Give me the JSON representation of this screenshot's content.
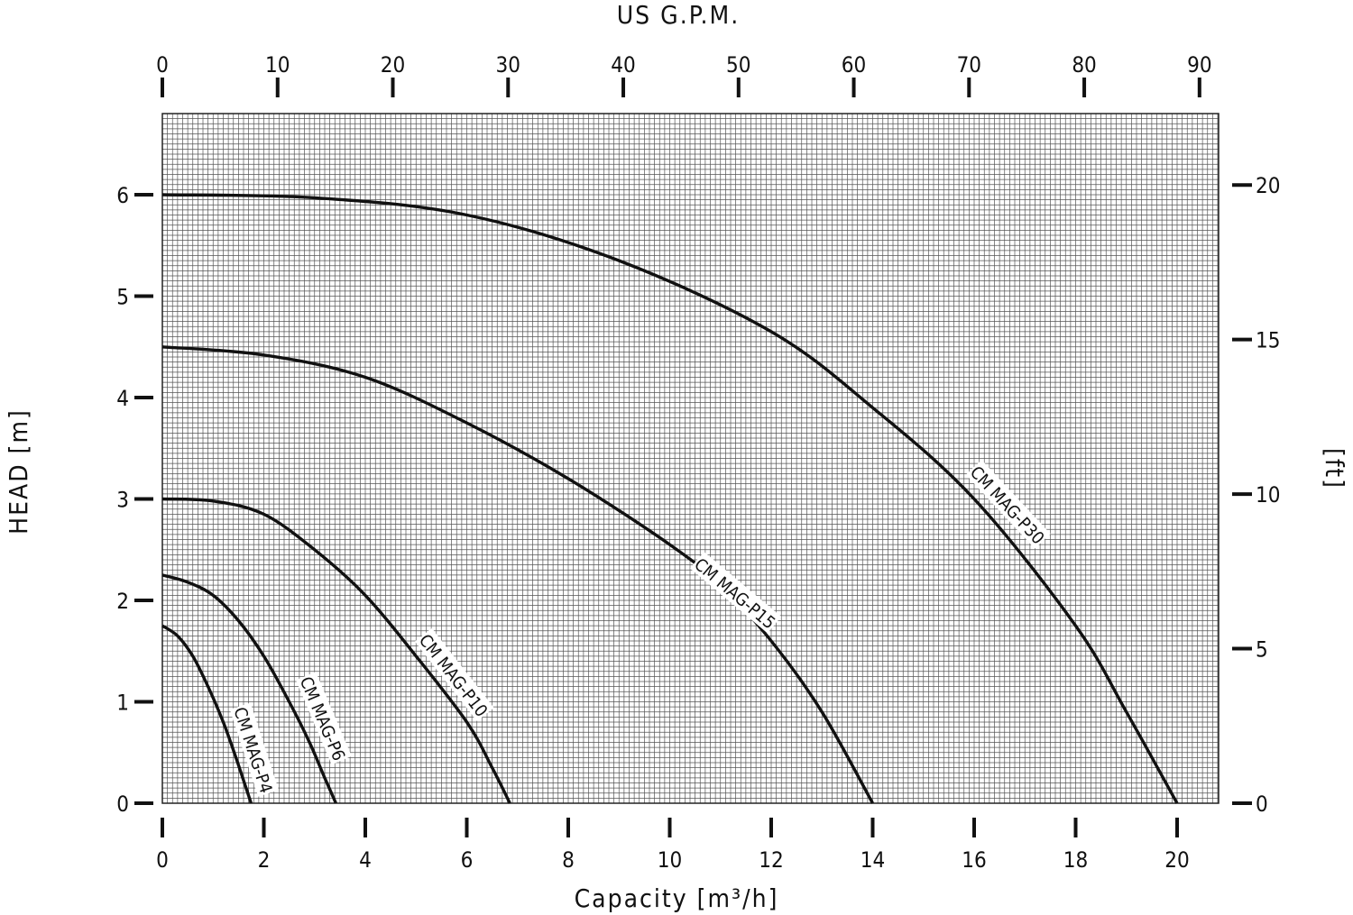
{
  "chart_data": {
    "type": "line",
    "title": "US G.P.M.",
    "xlabel": "Capacity [m³/h]",
    "ylabel": "HEAD [m]",
    "y2label": "[ft]",
    "xlim": [
      0,
      20.8
    ],
    "ylim": [
      0,
      6.8
    ],
    "grid": true,
    "x_ticks": [
      0,
      2,
      4,
      6,
      8,
      10,
      12,
      14,
      16,
      18,
      20
    ],
    "y_ticks": [
      0,
      1,
      2,
      3,
      4,
      5,
      6
    ],
    "top_axis": {
      "unit": "US G.P.M.",
      "ticks": [
        0,
        10,
        20,
        30,
        40,
        50,
        60,
        70,
        80,
        90
      ]
    },
    "right_axis": {
      "unit": "ft",
      "ticks": [
        0,
        5,
        10,
        15,
        20
      ]
    },
    "series": [
      {
        "name": "CM MAG-P4",
        "x": [
          0,
          0.3,
          0.6,
          0.9,
          1.2,
          1.45,
          1.65,
          1.75
        ],
        "y": [
          1.75,
          1.65,
          1.45,
          1.15,
          0.8,
          0.45,
          0.15,
          0
        ]
      },
      {
        "name": "CM MAG-P6",
        "x": [
          0,
          0.5,
          1.0,
          1.5,
          2.0,
          2.5,
          2.9,
          3.2,
          3.42
        ],
        "y": [
          2.25,
          2.18,
          2.05,
          1.8,
          1.45,
          1.0,
          0.6,
          0.25,
          0
        ]
      },
      {
        "name": "CM MAG-P10",
        "x": [
          0,
          1.0,
          2.0,
          3.0,
          4.0,
          5.0,
          6.0,
          6.5,
          6.85
        ],
        "y": [
          3.0,
          2.98,
          2.85,
          2.5,
          2.05,
          1.45,
          0.8,
          0.35,
          0
        ]
      },
      {
        "name": "CM MAG-P15",
        "x": [
          0,
          2.0,
          4.0,
          6.0,
          8.0,
          10.0,
          11.0,
          12.0,
          13.0,
          14.0
        ],
        "y": [
          4.5,
          4.42,
          4.2,
          3.75,
          3.2,
          2.55,
          2.15,
          1.6,
          0.9,
          0
        ]
      },
      {
        "name": "CM MAG-P30",
        "x": [
          0,
          3.0,
          6.0,
          9.0,
          12.0,
          14.0,
          16.0,
          18.0,
          19.0,
          20.0
        ],
        "y": [
          6.0,
          5.97,
          5.8,
          5.35,
          4.65,
          3.9,
          3.0,
          1.75,
          0.9,
          0
        ]
      }
    ]
  }
}
